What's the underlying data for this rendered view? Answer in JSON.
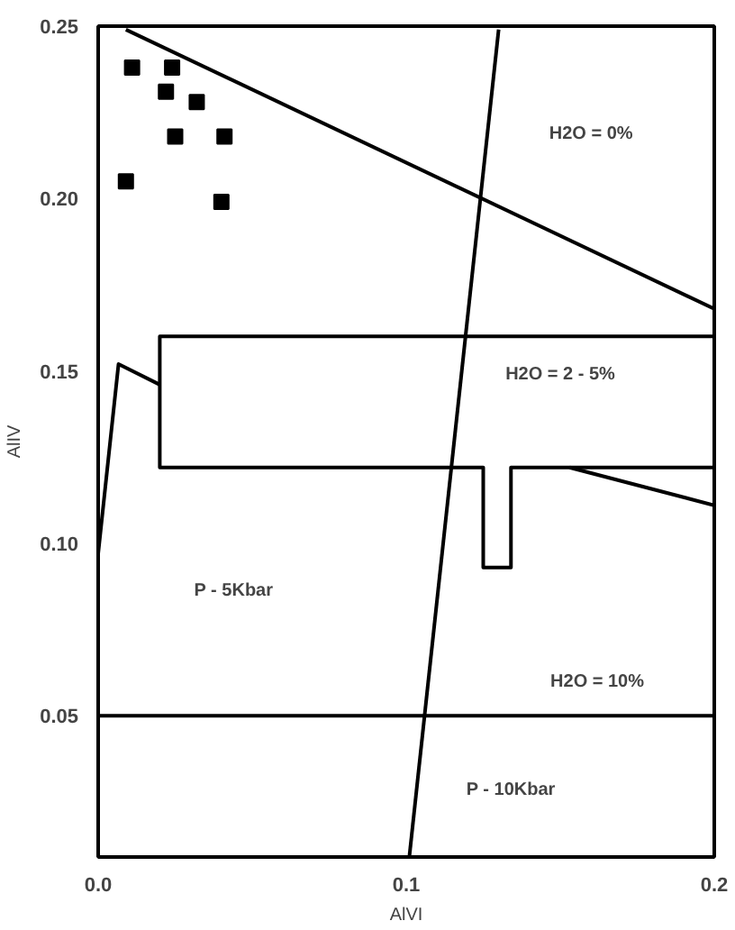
{
  "chart_data": {
    "type": "scatter",
    "xlabel": "AlVI",
    "ylabel": "AlIV",
    "xlim": [
      0.0,
      0.2
    ],
    "ylim": [
      0.009,
      0.25
    ],
    "xticks": [
      {
        "value": 0.0,
        "label": "0.0"
      },
      0.1,
      0.2
    ],
    "yticks": [
      0.05,
      {
        "value": 0.1,
        "label": "0.10"
      },
      0.15,
      {
        "value": 0.2,
        "label": "0.20"
      },
      0.25
    ],
    "grid": false,
    "series": [
      {
        "marker": "square",
        "color": "#000000",
        "x": [
          0.011,
          0.024,
          0.022,
          0.032,
          0.025,
          0.041,
          0.009,
          0.04
        ],
        "values": [
          0.238,
          0.238,
          0.231,
          0.228,
          0.218,
          0.218,
          0.205,
          0.199
        ]
      },
      {
        "type": "line",
        "color": "#000000",
        "x": [
          0.009,
          0.2
        ],
        "values": [
          0.249,
          0.168
        ]
      },
      {
        "type": "line",
        "color": "#000000",
        "x": [
          0.13,
          0.101
        ],
        "values": [
          0.249,
          0.009
        ]
      },
      {
        "type": "line",
        "color": "#000000",
        "x": [
          0.2,
          0.02,
          0.02,
          0.125,
          0.125,
          0.134,
          0.134,
          0.2
        ],
        "values": [
          0.16,
          0.16,
          0.122,
          0.122,
          0.093,
          0.093,
          0.122,
          0.122
        ]
      },
      {
        "type": "line",
        "color": "#000000",
        "x": [
          0.0,
          0.0066,
          0.02
        ],
        "values": [
          0.097,
          0.152,
          0.146
        ]
      },
      {
        "type": "line",
        "color": "#000000",
        "x": [
          0.153,
          0.2
        ],
        "values": [
          0.122,
          0.111
        ]
      },
      {
        "type": "line",
        "color": "#000000",
        "x": [
          0.0,
          0.2
        ],
        "values": [
          0.05,
          0.05
        ]
      }
    ],
    "annotations": [
      "H2O = 0%",
      "H2O = 2 - 5%",
      "P - 5Kbar",
      "H2O = 10%",
      "P - 10Kbar"
    ]
  }
}
